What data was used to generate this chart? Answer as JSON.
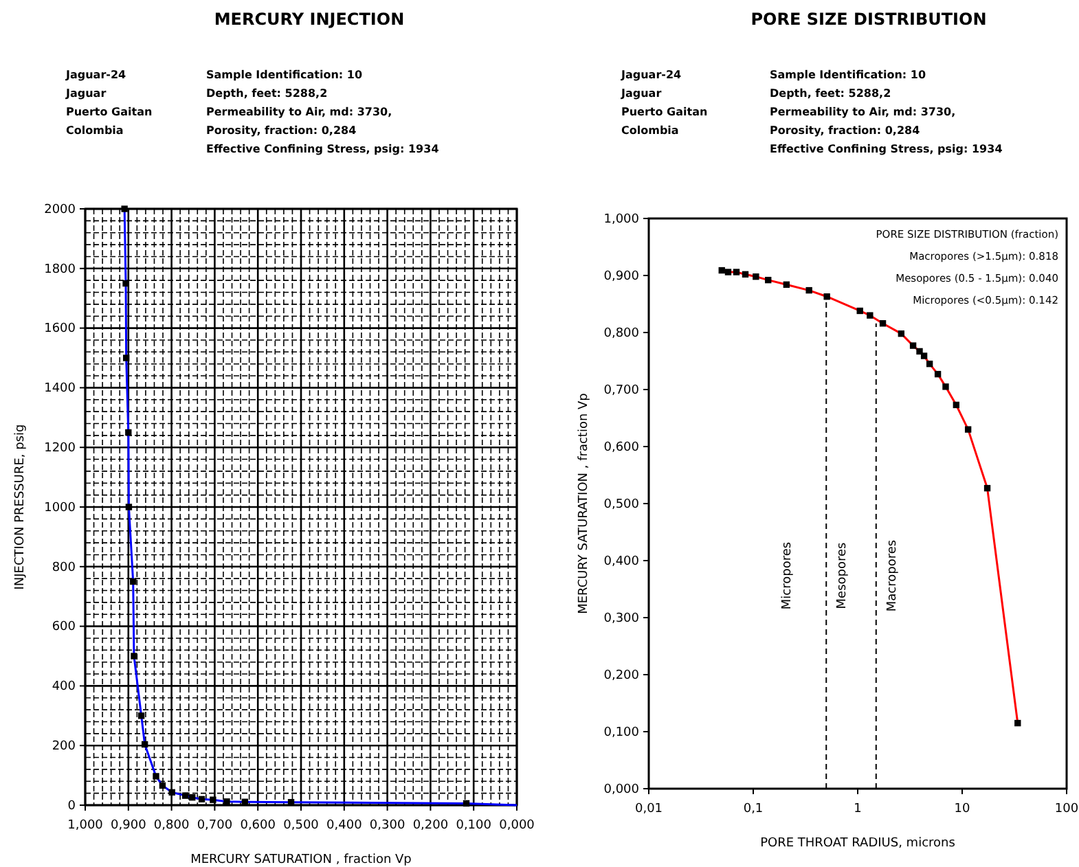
{
  "chart_data": [
    {
      "type": "scatter",
      "title": "MERCURY INJECTION",
      "xlabel": "MERCURY SATURATION , fraction Vp",
      "ylabel": "INJECTION PRESSURE, psig",
      "annotations": [
        "Jaguar-24",
        "Jaguar",
        "Puerto Gaitan",
        "Colombia",
        "Sample Identification: 10",
        "Depth, feet: 5288,2",
        "Permeability to Air, md: 3730,",
        "Porosity, fraction: 0,284",
        "Effective Confining Stress, psig: 1934"
      ],
      "series": [
        {
          "type": "line",
          "color": "#0000ff",
          "marker": "none",
          "x": [
            0.909,
            0.906,
            0.905,
            0.9,
            0.899,
            0.889,
            0.887,
            0.87,
            0.862,
            0.836,
            0.821,
            0.799,
            0.768,
            0.752,
            0.73,
            0.704,
            0.672,
            0.63,
            0.523,
            0.117,
            0
          ],
          "values": [
            2000,
            1750,
            1500,
            1250,
            1000,
            750,
            500,
            300,
            204,
            97,
            66,
            43,
            32,
            26,
            20,
            18,
            12,
            11,
            10,
            6,
            0
          ]
        },
        {
          "color": "#000000",
          "marker": "square",
          "x": [
            0.909,
            0.906,
            0.905,
            0.9,
            0.899,
            0.889,
            0.887,
            0.87,
            0.862,
            0.836,
            0.821,
            0.799,
            0.768,
            0.752,
            0.73,
            0.704,
            0.672,
            0.63,
            0.523,
            0.117
          ],
          "values": [
            2000,
            1750,
            1500,
            1250,
            1000,
            750,
            500,
            300,
            204,
            97,
            66,
            43,
            32,
            26,
            20,
            18,
            12,
            11,
            10,
            6
          ]
        }
      ],
      "xlim": [
        1,
        0
      ],
      "xticks": [
        {
          "value": 1,
          "label": "1,000"
        },
        {
          "value": 0.9,
          "label": "0,900"
        },
        {
          "value": 0.8,
          "label": "0,800"
        },
        {
          "value": 0.7,
          "label": "0,700"
        },
        {
          "value": 0.6,
          "label": "0,600"
        },
        {
          "value": 0.5,
          "label": "0,500"
        },
        {
          "value": 0.4,
          "label": "0,400"
        },
        {
          "value": 0.3,
          "label": "0,300"
        },
        {
          "value": 0.2,
          "label": "0,200"
        },
        {
          "value": 0.1,
          "label": "0,100"
        },
        {
          "value": 0,
          "label": "0,000"
        }
      ],
      "ylim": [
        0,
        2000
      ],
      "yticks": [
        0,
        200,
        400,
        600,
        800,
        1000,
        1200,
        1400,
        1600,
        1800,
        2000
      ],
      "grid": true
    },
    {
      "type": "scatter",
      "title": "PORE SIZE DISTRIBUTION",
      "xlabel": "PORE THROAT RADIUS, microns",
      "ylabel": "MERCURY SATURATION , fraction Vp",
      "annotations": [
        "Jaguar-24",
        "Jaguar",
        "Puerto Gaitan",
        "Colombia",
        "Sample Identification: 10",
        "Depth, feet: 5288,2",
        "Permeability to Air, md: 3730,",
        "Porosity, fraction: 0,284",
        "Effective Confining Stress, psig: 1934",
        "PORE SIZE DISTRIBUTION  (fraction)",
        "Macropores (>1.5µm):   0.818",
        "Mesopores (0.5 - 1.5µm):   0.040",
        "Micropores (<0.5µm):   0.142",
        "Micropores",
        "Mesopores",
        "Macropores"
      ],
      "series": [
        {
          "type": "line",
          "color": "#ff0000",
          "marker": "none",
          "x": [
            0.05,
            0.0575,
            0.069,
            0.084,
            0.106,
            0.139,
            0.208,
            0.342,
            0.507,
            1.05,
            1.31,
            1.74,
            2.61,
            3.39,
            3.91,
            4.32,
            4.88,
            5.85,
            6.95,
            8.77,
            11.4,
            17.4,
            34.0
          ],
          "values": [
            0.909,
            0.906,
            0.906,
            0.902,
            0.898,
            0.892,
            0.884,
            0.874,
            0.863,
            0.838,
            0.83,
            0.816,
            0.798,
            0.777,
            0.767,
            0.759,
            0.745,
            0.727,
            0.705,
            0.673,
            0.63,
            0.527,
            0.115
          ]
        },
        {
          "color": "#000000",
          "marker": "square",
          "x": [
            0.05,
            0.0575,
            0.069,
            0.084,
            0.106,
            0.139,
            0.208,
            0.342,
            0.507,
            1.05,
            1.31,
            1.74,
            2.61,
            3.39,
            3.91,
            4.32,
            4.88,
            5.85,
            6.95,
            8.77,
            11.4,
            17.4,
            34.0
          ],
          "values": [
            0.909,
            0.906,
            0.906,
            0.902,
            0.898,
            0.892,
            0.884,
            0.874,
            0.863,
            0.838,
            0.83,
            0.816,
            0.798,
            0.777,
            0.767,
            0.759,
            0.745,
            0.727,
            0.705,
            0.673,
            0.63,
            0.527,
            0.115
          ]
        }
      ],
      "ref_lines": [
        {
          "axis": "x",
          "value": 0.5,
          "line_style": "dashed",
          "color": "#000000"
        },
        {
          "axis": "x",
          "value": 1.5,
          "line_style": "dashed",
          "color": "#000000"
        }
      ],
      "log": "x",
      "xlim": [
        0.01,
        100
      ],
      "xticks": [
        {
          "value": 0.01,
          "label": "0,01"
        },
        {
          "value": 0.1,
          "label": "0,1"
        },
        1,
        10,
        100
      ],
      "ylim": [
        0,
        1
      ],
      "yticks": [
        {
          "value": 0,
          "label": "0,000"
        },
        {
          "value": 0.1,
          "label": "0,100"
        },
        {
          "value": 0.2,
          "label": "0,200"
        },
        {
          "value": 0.3,
          "label": "0,300"
        },
        {
          "value": 0.4,
          "label": "0,400"
        },
        {
          "value": 0.5,
          "label": "0,500"
        },
        {
          "value": 0.6,
          "label": "0,600"
        },
        {
          "value": 0.7,
          "label": "0,700"
        },
        {
          "value": 0.8,
          "label": "0,800"
        },
        {
          "value": 0.9,
          "label": "0,900"
        },
        {
          "value": 1,
          "label": "1,000"
        }
      ],
      "grid": false
    }
  ]
}
